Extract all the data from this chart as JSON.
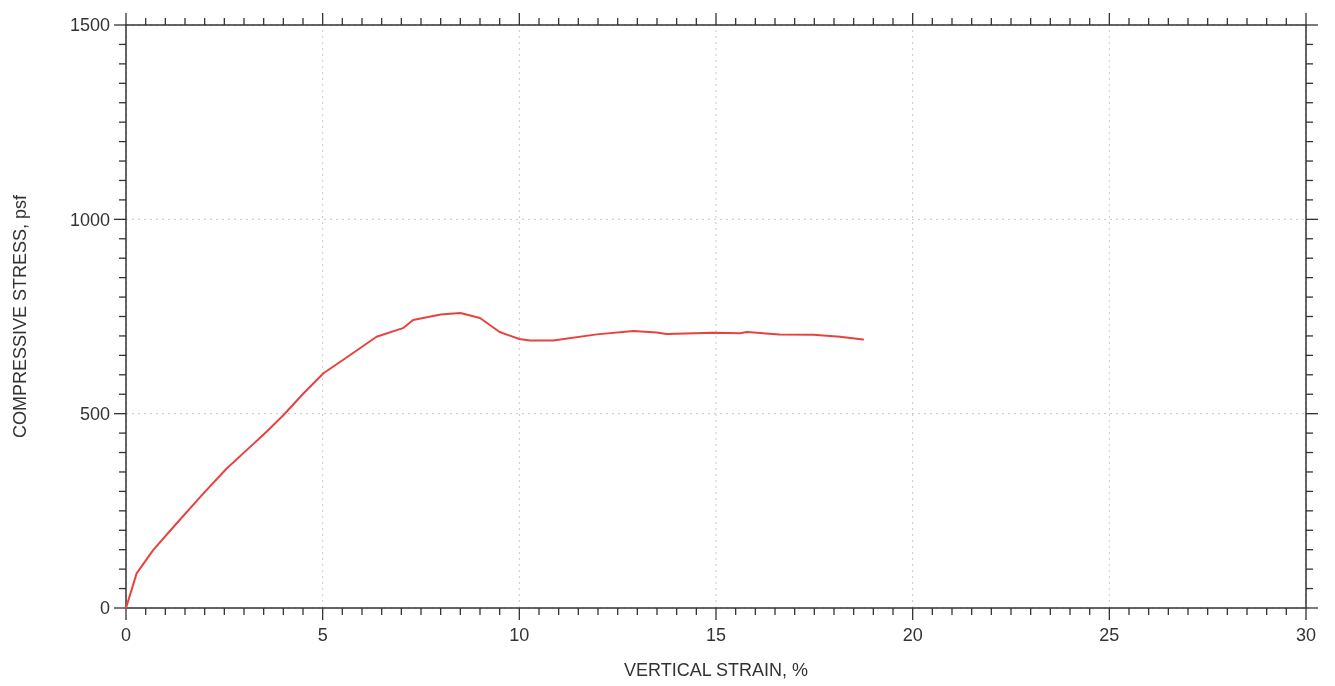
{
  "chart_data": {
    "type": "line",
    "xlabel": "VERTICAL STRAIN, %",
    "ylabel": "COMPRESSIVE STRESS, psf",
    "xlim": [
      0,
      30
    ],
    "ylim": [
      0,
      1500
    ],
    "xticks": [
      0,
      {
        "value": 0.5,
        "label": null
      },
      {
        "value": 1,
        "label": null
      },
      {
        "value": 1.5,
        "label": null
      },
      {
        "value": 2,
        "label": null
      },
      {
        "value": 2.5,
        "label": null
      },
      {
        "value": 3,
        "label": null
      },
      {
        "value": 3.5,
        "label": null
      },
      {
        "value": 4,
        "label": null
      },
      {
        "value": 4.5,
        "label": null
      },
      5,
      {
        "value": 5.5,
        "label": null
      },
      {
        "value": 6,
        "label": null
      },
      {
        "value": 6.5,
        "label": null
      },
      {
        "value": 7,
        "label": null
      },
      {
        "value": 7.5,
        "label": null
      },
      {
        "value": 8,
        "label": null
      },
      {
        "value": 8.5,
        "label": null
      },
      {
        "value": 9,
        "label": null
      },
      {
        "value": 9.5,
        "label": null
      },
      10,
      {
        "value": 10.5,
        "label": null
      },
      {
        "value": 11,
        "label": null
      },
      {
        "value": 11.5,
        "label": null
      },
      {
        "value": 12,
        "label": null
      },
      {
        "value": 12.5,
        "label": null
      },
      {
        "value": 13,
        "label": null
      },
      {
        "value": 13.5,
        "label": null
      },
      {
        "value": 14,
        "label": null
      },
      {
        "value": 14.5,
        "label": null
      },
      15,
      {
        "value": 15.5,
        "label": null
      },
      {
        "value": 16,
        "label": null
      },
      {
        "value": 16.5,
        "label": null
      },
      {
        "value": 17,
        "label": null
      },
      {
        "value": 17.5,
        "label": null
      },
      {
        "value": 18,
        "label": null
      },
      {
        "value": 18.5,
        "label": null
      },
      {
        "value": 19,
        "label": null
      },
      {
        "value": 19.5,
        "label": null
      },
      20,
      {
        "value": 20.5,
        "label": null
      },
      {
        "value": 21,
        "label": null
      },
      {
        "value": 21.5,
        "label": null
      },
      {
        "value": 22,
        "label": null
      },
      {
        "value": 22.5,
        "label": null
      },
      {
        "value": 23,
        "label": null
      },
      {
        "value": 23.5,
        "label": null
      },
      {
        "value": 24,
        "label": null
      },
      {
        "value": 24.5,
        "label": null
      },
      25,
      {
        "value": 25.5,
        "label": null
      },
      {
        "value": 26,
        "label": null
      },
      {
        "value": 26.5,
        "label": null
      },
      {
        "value": 27,
        "label": null
      },
      {
        "value": 27.5,
        "label": null
      },
      {
        "value": 28,
        "label": null
      },
      {
        "value": 28.5,
        "label": null
      },
      {
        "value": 29,
        "label": null
      },
      {
        "value": 29.5,
        "label": null
      },
      30
    ],
    "yticks": [
      0,
      {
        "value": 50,
        "label": null
      },
      {
        "value": 100,
        "label": null
      },
      {
        "value": 150,
        "label": null
      },
      {
        "value": 200,
        "label": null
      },
      {
        "value": 250,
        "label": null
      },
      {
        "value": 300,
        "label": null
      },
      {
        "value": 350,
        "label": null
      },
      {
        "value": 400,
        "label": null
      },
      {
        "value": 450,
        "label": null
      },
      500,
      {
        "value": 550,
        "label": null
      },
      {
        "value": 600,
        "label": null
      },
      {
        "value": 650,
        "label": null
      },
      {
        "value": 700,
        "label": null
      },
      {
        "value": 750,
        "label": null
      },
      {
        "value": 800,
        "label": null
      },
      {
        "value": 850,
        "label": null
      },
      {
        "value": 900,
        "label": null
      },
      {
        "value": 950,
        "label": null
      },
      1000,
      {
        "value": 1050,
        "label": null
      },
      {
        "value": 1100,
        "label": null
      },
      {
        "value": 1150,
        "label": null
      },
      {
        "value": 1200,
        "label": null
      },
      {
        "value": 1250,
        "label": null
      },
      {
        "value": 1300,
        "label": null
      },
      {
        "value": 1350,
        "label": null
      },
      {
        "value": 1400,
        "label": null
      },
      {
        "value": 1450,
        "label": null
      },
      1500
    ],
    "grid": true,
    "marker": "none",
    "line_style": "solid",
    "x": [
      0,
      0.27,
      0.69,
      1.29,
      1.97,
      2.56,
      3.58,
      4.0,
      4.51,
      5.02,
      5.7,
      6.37,
      7.04,
      7.3,
      8.0,
      8.5,
      9.0,
      9.5,
      10.0,
      10.27,
      10.86,
      11.97,
      12.9,
      13.49,
      13.74,
      14.93,
      15.61,
      15.78,
      16.62,
      17.48,
      18.15,
      18.74
    ],
    "series": [
      {
        "color": "#e8423f",
        "values": [
          0,
          89,
          149,
          218,
          295,
          359,
          454,
          496,
          552,
          604,
          651,
          698,
          720,
          741,
          755,
          759,
          746,
          710,
          692,
          688,
          688,
          704,
          713,
          709,
          705,
          708,
          707,
          710,
          704,
          703,
          698,
          691
        ]
      }
    ]
  }
}
